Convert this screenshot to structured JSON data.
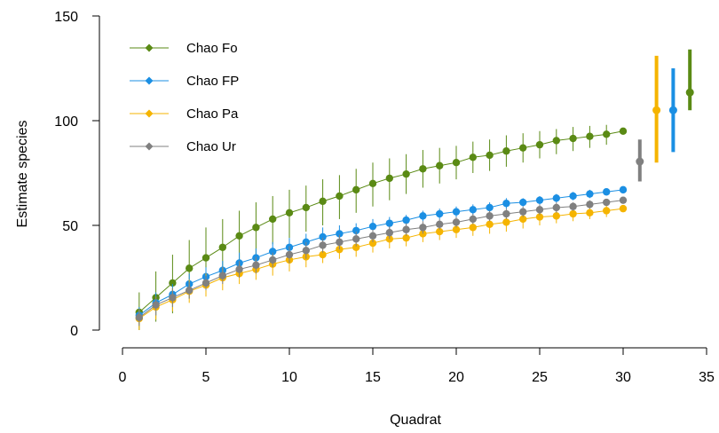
{
  "chart_data": {
    "type": "line",
    "title": "",
    "xlabel": "Quadrat",
    "ylabel": "Estimate species",
    "xlim": [
      0,
      35
    ],
    "ylim": [
      0,
      150
    ],
    "xticks": [
      0,
      5,
      10,
      15,
      20,
      25,
      30,
      35
    ],
    "yticks": [
      0,
      50,
      100,
      150
    ],
    "grid": false,
    "legend_position": "top-left",
    "x": [
      1,
      2,
      3,
      4,
      5,
      6,
      7,
      8,
      9,
      10,
      11,
      12,
      13,
      14,
      15,
      16,
      17,
      18,
      19,
      20,
      21,
      22,
      23,
      24,
      25,
      26,
      27,
      28,
      29,
      30
    ],
    "series": [
      {
        "name": "Chao Fo",
        "color": "#5a8a14",
        "values": [
          8.5,
          15.5,
          22.5,
          29.5,
          34.5,
          39.5,
          45,
          49,
          53,
          56,
          58.5,
          61.5,
          64,
          67,
          70,
          72.5,
          74.5,
          77,
          78.5,
          80,
          82.5,
          83.5,
          85.5,
          87,
          88.5,
          90.5,
          91.5,
          92.5,
          93.5,
          95
        ],
        "err_low": [
          0,
          4,
          8,
          15,
          20,
          26,
          32,
          36,
          41,
          44,
          47,
          50,
          53,
          56,
          59,
          62,
          65,
          68,
          70,
          72,
          75,
          76,
          78,
          80,
          82,
          84,
          85.5,
          87,
          88.5,
          94
        ],
        "err_high": [
          18,
          28,
          36,
          43,
          49,
          53,
          57,
          61,
          64,
          67,
          69,
          72,
          74,
          77,
          80,
          82,
          84,
          86,
          87,
          88,
          90,
          91,
          93,
          94,
          95,
          96,
          97,
          97.5,
          98,
          96
        ],
        "final_estimate": {
          "x": 34,
          "y": 113.5,
          "low": 105,
          "high": 134
        }
      },
      {
        "name": "Chao FP",
        "color": "#1b8fe3",
        "values": [
          7,
          13,
          17,
          22,
          25.5,
          28.5,
          32,
          34.5,
          37.5,
          39.5,
          42,
          44.5,
          46,
          47.5,
          49.5,
          51,
          52.5,
          54.5,
          55.5,
          56.5,
          57.5,
          58.5,
          60.5,
          61,
          62,
          63,
          64,
          65,
          66,
          67
        ],
        "err_low": [
          3,
          7,
          12,
          17,
          21,
          24,
          27,
          30,
          33,
          35,
          38,
          40,
          42,
          44,
          46,
          48,
          50,
          52,
          53,
          54,
          55,
          56,
          58,
          59,
          60,
          61,
          62,
          63,
          65,
          66.5
        ],
        "err_high": [
          11,
          18,
          22,
          27,
          30,
          33,
          37,
          39,
          42,
          44,
          46,
          49,
          50,
          51,
          53,
          54,
          55,
          57,
          58,
          59,
          60,
          61,
          63,
          63,
          64,
          65,
          66,
          67,
          67,
          67.5
        ],
        "final_estimate": {
          "x": 33,
          "y": 105,
          "low": 85,
          "high": 125
        }
      },
      {
        "name": "Chao Pa",
        "color": "#f5b400",
        "values": [
          5.5,
          11,
          14.5,
          18.5,
          21.5,
          25,
          27,
          29,
          31.5,
          33.5,
          35,
          36,
          38.5,
          39.5,
          41.5,
          43.5,
          44,
          46,
          47,
          48,
          49,
          50.5,
          51.5,
          53,
          54,
          54.5,
          55.5,
          56,
          57,
          58
        ],
        "err_low": [
          0,
          5,
          9,
          13,
          16,
          19,
          22,
          24,
          26,
          28,
          30,
          32,
          34,
          35,
          37,
          39,
          40,
          42,
          43,
          44,
          45,
          46,
          47,
          48.5,
          50,
          51,
          52,
          53,
          54,
          57
        ],
        "err_high": [
          10,
          16,
          20,
          24,
          27,
          30,
          32,
          34,
          36,
          38,
          40,
          41,
          43,
          44,
          46,
          47,
          48,
          50,
          51,
          52,
          53,
          54.5,
          56,
          57,
          58,
          58.5,
          59,
          59.5,
          60,
          59
        ],
        "final_estimate": {
          "x": 32,
          "y": 105,
          "low": 80,
          "high": 131
        }
      },
      {
        "name": "Chao Ur",
        "color": "#808080",
        "values": [
          6,
          12,
          15.5,
          19,
          22.5,
          26,
          29,
          31,
          33.5,
          36,
          38,
          40.5,
          42,
          43.5,
          45,
          46.5,
          48,
          49,
          50.5,
          51.5,
          53,
          54.5,
          55.5,
          56.5,
          57.5,
          58.5,
          59,
          60,
          61,
          62
        ],
        "err_low": [
          2,
          7,
          11,
          15,
          19,
          22,
          25,
          27,
          30,
          32,
          34,
          37,
          38.5,
          40,
          42,
          43.5,
          45,
          46,
          48,
          49,
          50.5,
          52,
          53,
          54,
          55,
          56,
          57,
          58,
          59.5,
          61
        ],
        "err_high": [
          10,
          16,
          20,
          23,
          26,
          30,
          33,
          35,
          37,
          40,
          42,
          44,
          45.5,
          47,
          48,
          49.5,
          51,
          52,
          53,
          54,
          55.5,
          57,
          58,
          59,
          60,
          61,
          61,
          62,
          62.5,
          63
        ],
        "final_estimate": {
          "x": 31,
          "y": 80.5,
          "low": 71,
          "high": 91
        }
      }
    ]
  }
}
